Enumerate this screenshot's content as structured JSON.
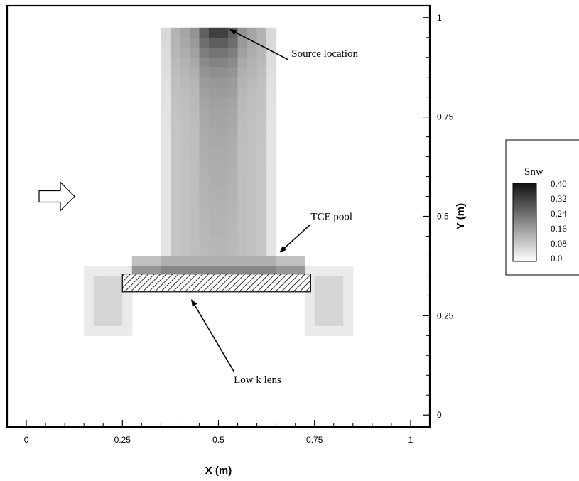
{
  "chart_data": {
    "type": "heatmap",
    "title": "",
    "xlabel": "X (m)",
    "ylabel": "Y (m)",
    "xlim": [
      -0.05,
      1.05
    ],
    "ylim": [
      -0.03,
      1.03
    ],
    "x_ticks": [
      0,
      0.25,
      0.5,
      0.75,
      1
    ],
    "x_tick_labels": [
      "0",
      "0.25",
      "0.5",
      "0.75",
      "1"
    ],
    "y_ticks": [
      0,
      0.25,
      0.5,
      0.75,
      1
    ],
    "y_tick_labels": [
      "0",
      "0.25",
      "0.5",
      "0.75",
      "1"
    ],
    "variable": "Snw",
    "legend": {
      "title": "Snw",
      "placement": "right",
      "levels": [
        {
          "label": "0.40",
          "value": 0.4
        },
        {
          "label": "0.32",
          "value": 0.32
        },
        {
          "label": "0.24",
          "value": 0.24
        },
        {
          "label": "0.16",
          "value": 0.16
        },
        {
          "label": "0.08",
          "value": 0.08
        },
        {
          "label": "0.0",
          "value": 0.0
        }
      ]
    },
    "field": {
      "cell_size": 0.025,
      "plume": {
        "x_min": 0.35,
        "x_max": 0.65,
        "y_min": 0.4,
        "y_max": 0.975
      },
      "source_x": 0.5,
      "source_y": 0.975,
      "pool": {
        "x_min": 0.275,
        "x_max": 0.725,
        "y_min": 0.35,
        "y_max": 0.4
      },
      "arms": [
        {
          "x_min": 0.15,
          "x_max": 0.275,
          "y_min": 0.2,
          "y_max": 0.375
        },
        {
          "x_min": 0.725,
          "x_max": 0.85,
          "y_min": 0.2,
          "y_max": 0.375
        }
      ]
    },
    "lens": {
      "label": "Low k lens",
      "x_min": 0.25,
      "x_max": 0.74,
      "y_min": 0.31,
      "y_max": 0.355
    },
    "flow_arrow": {
      "x_min": -0.05,
      "x_max": 0.12,
      "y": 0.55
    },
    "annotations": [
      {
        "text": "Source location",
        "text_x": 0.69,
        "text_y": 0.91,
        "arrow_from_x": 0.68,
        "arrow_from_y": 0.895,
        "arrow_to_x": 0.53,
        "arrow_to_y": 0.97
      },
      {
        "text": "TCE pool",
        "text_x": 0.74,
        "text_y": 0.5,
        "arrow_from_x": 0.74,
        "arrow_from_y": 0.48,
        "arrow_to_x": 0.66,
        "arrow_to_y": 0.41
      },
      {
        "text": "Low k lens",
        "text_x": 0.54,
        "text_y": 0.09,
        "arrow_from_x": 0.54,
        "arrow_from_y": 0.11,
        "arrow_to_x": 0.43,
        "arrow_to_y": 0.29
      }
    ]
  }
}
